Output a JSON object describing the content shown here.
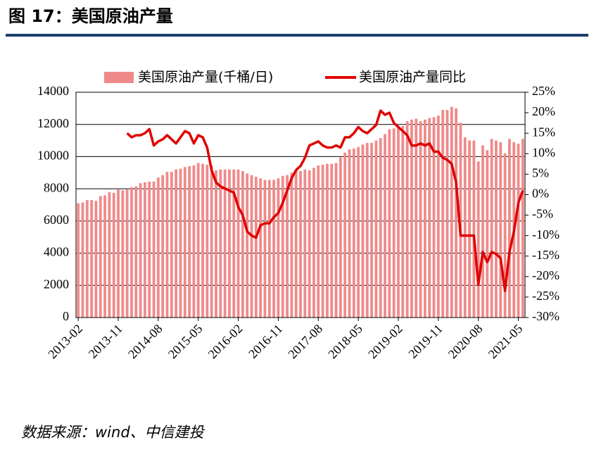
{
  "chart_data": {
    "type": "bar",
    "title": "图 17：美国原油产量",
    "source": "数据来源：wind、中信建投",
    "categories": [
      "2013-02",
      null,
      null,
      null,
      null,
      null,
      null,
      null,
      null,
      "2013-11",
      null,
      null,
      null,
      null,
      null,
      null,
      null,
      null,
      "2014-08",
      null,
      null,
      null,
      null,
      null,
      null,
      null,
      null,
      "2015-05",
      null,
      null,
      null,
      null,
      null,
      null,
      null,
      null,
      "2016-02",
      null,
      null,
      null,
      null,
      null,
      null,
      null,
      null,
      "2016-11",
      null,
      null,
      null,
      null,
      null,
      null,
      null,
      null,
      "2017-08",
      null,
      null,
      null,
      null,
      null,
      null,
      null,
      null,
      "2018-05",
      null,
      null,
      null,
      null,
      null,
      null,
      null,
      null,
      "2019-02",
      null,
      null,
      null,
      null,
      null,
      null,
      null,
      null,
      "2019-11",
      null,
      null,
      null,
      null,
      null,
      null,
      null,
      null,
      "2020-08",
      null,
      null,
      null,
      null,
      null,
      null,
      null,
      null,
      "2021-05",
      null
    ],
    "series": [
      {
        "name": "美国原油产量(千桶/日)",
        "type": "bar",
        "color": "#f08a8a",
        "values": [
          7100,
          7150,
          7300,
          7300,
          7250,
          7550,
          7600,
          7800,
          7750,
          7950,
          7900,
          7950,
          8100,
          8150,
          8350,
          8400,
          8450,
          8450,
          8700,
          8850,
          9050,
          9050,
          9200,
          9250,
          9350,
          9400,
          9450,
          9600,
          9550,
          9500,
          9450,
          9150,
          9200,
          9200,
          9200,
          9200,
          9200,
          9100,
          8950,
          8850,
          8750,
          8650,
          8550,
          8550,
          8550,
          8650,
          8800,
          8850,
          9000,
          9150,
          9100,
          9200,
          9150,
          9300,
          9450,
          9500,
          9550,
          9550,
          9600,
          9950,
          10250,
          10450,
          10500,
          10600,
          10750,
          10850,
          10850,
          11000,
          11150,
          11400,
          11700,
          11750,
          11850,
          11900,
          12200,
          12300,
          12350,
          12200,
          12300,
          12400,
          12450,
          12550,
          12900,
          12900,
          13100,
          13000,
          12100,
          11200,
          11000,
          11000,
          9700,
          10700,
          10400,
          11100,
          11000,
          10900,
          10200,
          11100,
          10900,
          10800,
          11100
        ]
      },
      {
        "name": "美国原油产量同比",
        "type": "line",
        "axis": "y2",
        "color": "#e00000",
        "values": [
          null,
          null,
          null,
          null,
          null,
          null,
          null,
          null,
          null,
          null,
          null,
          15,
          14,
          14.5,
          14.5,
          15,
          16,
          12,
          13,
          13.5,
          14.5,
          13.5,
          12.5,
          14,
          15.5,
          15,
          12.5,
          14.5,
          14,
          11.5,
          6,
          3,
          2,
          1.5,
          1,
          0.5,
          -3,
          -5,
          -9,
          -10,
          -10.5,
          -7.5,
          -7,
          -7,
          -5.5,
          -4.5,
          -2,
          1,
          4,
          6,
          7,
          9,
          12,
          12.5,
          13,
          12,
          11.5,
          11.5,
          12,
          11.5,
          14,
          14,
          15,
          16.5,
          15.5,
          15,
          16,
          17,
          20.5,
          19.5,
          20,
          17.5,
          16.5,
          15.5,
          14.5,
          12,
          12,
          12.5,
          12,
          12.5,
          10.5,
          10.5,
          9,
          8.5,
          7.5,
          3,
          -10,
          -10,
          -10,
          -10,
          -22,
          -14,
          -16.5,
          -14,
          -14.5,
          -15.5,
          -23.5,
          -14,
          -9,
          -2,
          1
        ]
      }
    ],
    "ylim": [
      0,
      14000
    ],
    "yticks": [
      0,
      2000,
      4000,
      6000,
      8000,
      10000,
      12000,
      14000
    ],
    "y2lim": [
      -30,
      25
    ],
    "y2ticks": [
      {
        "value": 25,
        "label": "25%"
      },
      {
        "value": 20,
        "label": "20%"
      },
      {
        "value": 15,
        "label": "15%"
      },
      {
        "value": 10,
        "label": "10%"
      },
      {
        "value": 5,
        "label": "5%"
      },
      {
        "value": 0,
        "label": "0%"
      },
      {
        "value": -5,
        "label": "-5%"
      },
      {
        "value": -10,
        "label": "-10%"
      },
      {
        "value": -15,
        "label": "-15%"
      },
      {
        "value": -20,
        "label": "-20%"
      },
      {
        "value": -25,
        "label": "-25%"
      },
      {
        "value": -30,
        "label": "-30%"
      }
    ],
    "grid": true
  }
}
